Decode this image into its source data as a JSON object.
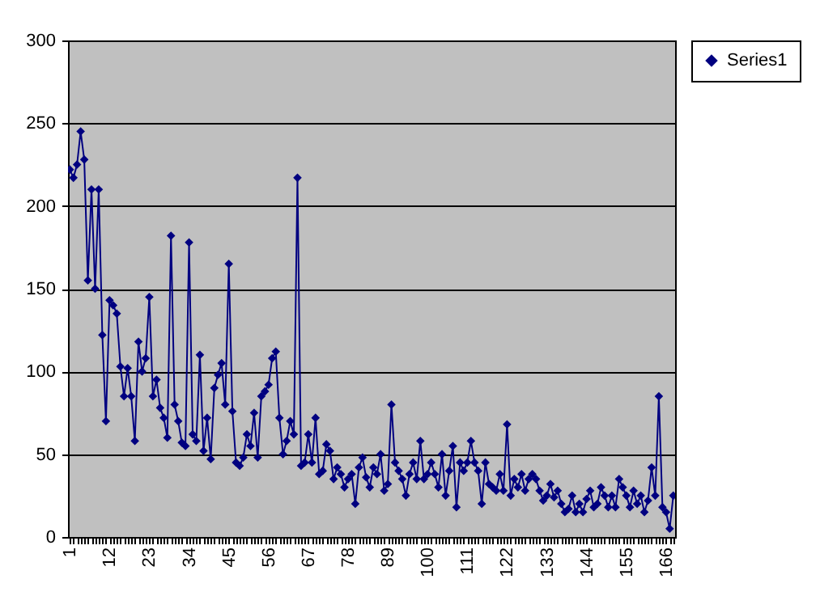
{
  "chart_data": {
    "type": "line",
    "categories": [
      "1",
      null,
      null,
      null,
      null,
      null,
      null,
      null,
      null,
      null,
      null,
      "12",
      null,
      null,
      null,
      null,
      null,
      null,
      null,
      null,
      null,
      null,
      "23",
      null,
      null,
      null,
      null,
      null,
      null,
      null,
      null,
      null,
      null,
      "34",
      null,
      null,
      null,
      null,
      null,
      null,
      null,
      null,
      null,
      null,
      "45",
      null,
      null,
      null,
      null,
      null,
      null,
      null,
      null,
      null,
      null,
      "56",
      null,
      null,
      null,
      null,
      null,
      null,
      null,
      null,
      null,
      null,
      "67",
      null,
      null,
      null,
      null,
      null,
      null,
      null,
      null,
      null,
      null,
      "78",
      null,
      null,
      null,
      null,
      null,
      null,
      null,
      null,
      null,
      null,
      "89",
      null,
      null,
      null,
      null,
      null,
      null,
      null,
      null,
      null,
      null,
      "100",
      null,
      null,
      null,
      null,
      null,
      null,
      null,
      null,
      null,
      null,
      "111",
      null,
      null,
      null,
      null,
      null,
      null,
      null,
      null,
      null,
      null,
      "122",
      null,
      null,
      null,
      null,
      null,
      null,
      null,
      null,
      null,
      null,
      "133",
      null,
      null,
      null,
      null,
      null,
      null,
      null,
      null,
      null,
      null,
      "144",
      null,
      null,
      null,
      null,
      null,
      null,
      null,
      null,
      null,
      null,
      "155",
      null,
      null,
      null,
      null,
      null,
      null,
      null,
      null,
      null,
      null,
      "166",
      null,
      null
    ],
    "series": [
      {
        "name": "Series1",
        "color": "#000080",
        "values": [
          222,
          217,
          225,
          245,
          228,
          155,
          210,
          150,
          210,
          122,
          70,
          143,
          140,
          135,
          103,
          85,
          102,
          85,
          58,
          118,
          100,
          108,
          145,
          85,
          95,
          78,
          72,
          60,
          182,
          80,
          70,
          57,
          55,
          178,
          62,
          58,
          110,
          52,
          72,
          47,
          90,
          98,
          105,
          80,
          165,
          76,
          45,
          43,
          48,
          62,
          55,
          75,
          48,
          85,
          88,
          92,
          108,
          112,
          72,
          50,
          58,
          70,
          62,
          217,
          43,
          45,
          62,
          45,
          72,
          38,
          40,
          56,
          52,
          35,
          42,
          38,
          30,
          35,
          38,
          20,
          42,
          48,
          36,
          30,
          42,
          38,
          50,
          28,
          32,
          80,
          45,
          40,
          35,
          25,
          38,
          45,
          35,
          58,
          35,
          38,
          45,
          38,
          30,
          50,
          25,
          40,
          55,
          18,
          45,
          40,
          45,
          58,
          45,
          40,
          20,
          45,
          32,
          30,
          28,
          38,
          28,
          68,
          25,
          35,
          30,
          38,
          28,
          35,
          38,
          35,
          28,
          22,
          25,
          32,
          24,
          28,
          20,
          15,
          17,
          25,
          15,
          20,
          15,
          23,
          28,
          18,
          20,
          30,
          25,
          18,
          25,
          18,
          35,
          30,
          25,
          18,
          28,
          20,
          25,
          15,
          22,
          42,
          25,
          85,
          18,
          15,
          5,
          25
        ]
      }
    ],
    "ylim": [
      0,
      300
    ],
    "yticks": [
      0,
      50,
      100,
      150,
      200,
      250,
      300
    ],
    "grid": "y",
    "legend": "right",
    "marker": "diamond",
    "line_style": "solid"
  }
}
